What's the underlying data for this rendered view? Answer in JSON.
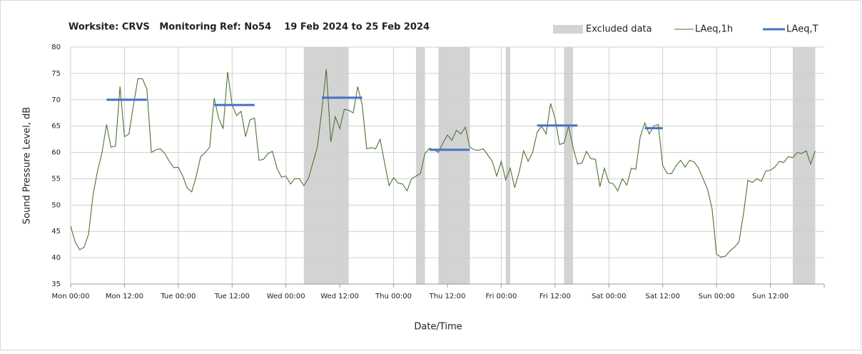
{
  "chart_data": {
    "type": "line",
    "title": "Worksite: CRVS   Monitoring Ref: No54    19 Feb 2024 to 25 Feb 2024",
    "xlabel": "Date/Time",
    "ylabel": "Sound Pressure Level, dB",
    "xlim": [
      0,
      168
    ],
    "ylim": [
      35,
      80
    ],
    "yticks": [
      35,
      40,
      45,
      50,
      55,
      60,
      65,
      70,
      75,
      80
    ],
    "xticks": [
      {
        "value": 0,
        "label": "Mon 00:00"
      },
      {
        "value": 12,
        "label": "Mon 12:00"
      },
      {
        "value": 24,
        "label": "Tue 00:00"
      },
      {
        "value": 36,
        "label": "Tue 12:00"
      },
      {
        "value": 48,
        "label": "Wed 00:00"
      },
      {
        "value": 60,
        "label": "Wed 12:00"
      },
      {
        "value": 72,
        "label": "Thu 00:00"
      },
      {
        "value": 84,
        "label": "Thu 12:00"
      },
      {
        "value": 96,
        "label": "Fri 00:00"
      },
      {
        "value": 108,
        "label": "Fri 12:00"
      },
      {
        "value": 120,
        "label": "Sat 00:00"
      },
      {
        "value": 132,
        "label": "Sat 12:00"
      },
      {
        "value": 144,
        "label": "Sun 00:00"
      },
      {
        "value": 156,
        "label": "Sun 12:00"
      }
    ],
    "grid": true,
    "legend": "top-right",
    "excluded": {
      "name": "Excluded data",
      "color": "#d3d3d3",
      "ranges": [
        [
          52,
          62
        ],
        [
          77,
          79
        ],
        [
          82,
          89
        ],
        [
          97,
          98
        ],
        [
          110,
          112
        ],
        [
          161,
          166
        ]
      ]
    },
    "series": [
      {
        "name": "LAeq,1h",
        "color": "#4f7236",
        "x": [
          0,
          1,
          2,
          3,
          4,
          5,
          6,
          7,
          8,
          9,
          10,
          11,
          12,
          13,
          14,
          15,
          16,
          17,
          18,
          19,
          20,
          21,
          22,
          23,
          24,
          25,
          26,
          27,
          28,
          29,
          30,
          31,
          32,
          33,
          34,
          35,
          36,
          37,
          38,
          39,
          40,
          41,
          42,
          43,
          44,
          45,
          46,
          47,
          48,
          49,
          50,
          51,
          52,
          53,
          54,
          55,
          56,
          57,
          58,
          59,
          60,
          61,
          62,
          63,
          64,
          65,
          66,
          67,
          68,
          69,
          70,
          71,
          72,
          73,
          74,
          75,
          76,
          77,
          78,
          79,
          80,
          81,
          82,
          83,
          84,
          85,
          86,
          87,
          88,
          89,
          90,
          91,
          92,
          93,
          94,
          95,
          96,
          97,
          98,
          99,
          100,
          101,
          102,
          103,
          104,
          105,
          106,
          107,
          108,
          109,
          110,
          111,
          112,
          113,
          114,
          115,
          116,
          117,
          118,
          119,
          120,
          121,
          122,
          123,
          124,
          125,
          126,
          127,
          128,
          129,
          130,
          131,
          132,
          133,
          134,
          135,
          136,
          137,
          138,
          139,
          140,
          141,
          142,
          143,
          144,
          145,
          146,
          147,
          148,
          149,
          150,
          151,
          152,
          153,
          154,
          155,
          156,
          157,
          158,
          159,
          160,
          161,
          162,
          163,
          164,
          165,
          166
        ],
        "values": [
          46,
          43,
          41.5,
          42,
          44.5,
          52,
          56.5,
          60,
          65.3,
          61,
          61.2,
          72.5,
          63,
          63.5,
          69,
          74,
          74,
          72,
          60,
          60.5,
          60.7,
          59.8,
          58.3,
          57.1,
          57.2,
          55.5,
          53.2,
          52.5,
          55.5,
          59.2,
          60,
          61,
          70.3,
          66.5,
          64.5,
          75.3,
          69,
          67,
          67.8,
          63,
          66.2,
          66.5,
          58.5,
          58.7,
          59.8,
          60.2,
          57,
          55.3,
          55.5,
          54,
          55,
          55,
          53.7,
          55,
          58,
          61,
          68,
          75.8,
          62,
          66.8,
          64.5,
          68.2,
          68,
          67.5,
          72.5,
          69,
          60.7,
          60.9,
          60.7,
          62.5,
          58,
          53.7,
          55.2,
          54.2,
          54,
          52.7,
          55,
          55.5,
          56,
          59.8,
          60.8,
          60.5,
          60,
          61.8,
          63.3,
          62.3,
          64.2,
          63.5,
          64.8,
          61,
          60.5,
          60.4,
          60.7,
          59.5,
          58.3,
          55.5,
          58.3,
          54.8,
          57,
          53.3,
          56.3,
          60.3,
          58.3,
          60,
          63.8,
          65,
          63.5,
          69.3,
          66.5,
          61.5,
          61.8,
          65,
          61,
          57.8,
          58,
          60.2,
          58.8,
          58.7,
          53.5,
          57,
          54.3,
          54,
          52.7,
          55,
          53.8,
          57,
          56.8,
          63,
          65.6,
          63.5,
          65,
          65.3,
          57.5,
          56,
          56,
          57.5,
          58.5,
          57.2,
          58.5,
          58.2,
          57,
          55,
          53,
          49.3,
          40.7,
          40.1,
          40.3,
          41.3,
          42,
          43,
          48.3,
          54.7,
          54.3,
          55,
          54.5,
          56.5,
          56.6,
          57.2,
          58.3,
          58.1,
          59.2,
          59,
          60,
          59.8,
          60.3,
          57.8,
          60.3
        ]
      }
    ],
    "periods": {
      "name": "LAeq,T",
      "color": "#4472c4",
      "segments": [
        {
          "start": 8,
          "end": 17,
          "value": 70
        },
        {
          "start": 32,
          "end": 41,
          "value": 69
        },
        {
          "start": 56,
          "end": 65,
          "value": 70.4
        },
        {
          "start": 80,
          "end": 89,
          "value": 60.5
        },
        {
          "start": 104,
          "end": 113,
          "value": 65.1
        },
        {
          "start": 128,
          "end": 132,
          "value": 64.6
        }
      ]
    }
  }
}
